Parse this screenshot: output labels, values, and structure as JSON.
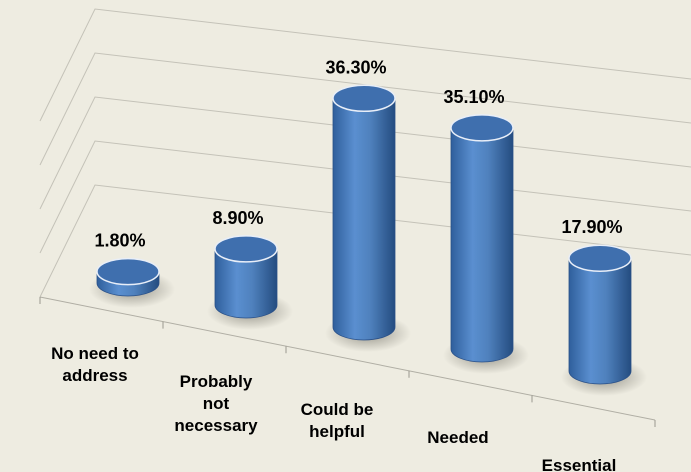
{
  "chart_data": {
    "type": "bar",
    "categories": [
      "No need to address",
      "Probably not necessary",
      "Could be helpful",
      "Needed",
      "Essential"
    ],
    "values": [
      1.8,
      8.9,
      36.3,
      35.1,
      17.9
    ],
    "value_labels": [
      "1.80%",
      "8.90%",
      "36.30%",
      "35.10%",
      "17.90%"
    ],
    "color": "#4f81bd",
    "ylim": [
      0,
      40
    ],
    "yticks": [
      0,
      10,
      20,
      30,
      40
    ],
    "grid": true
  }
}
